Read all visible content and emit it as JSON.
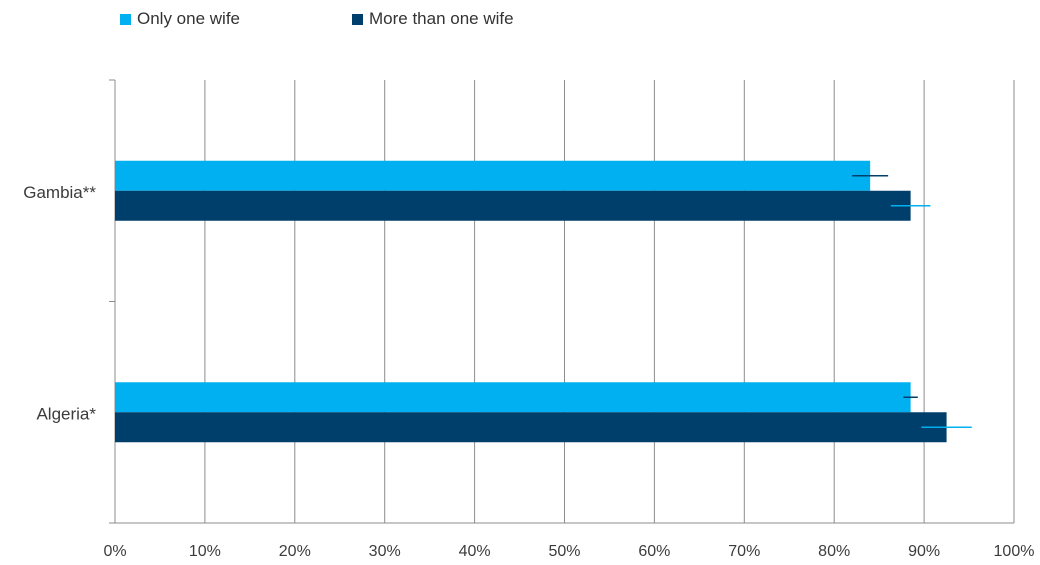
{
  "chart_data": {
    "type": "bar",
    "orientation": "horizontal",
    "categories": [
      "Gambia**",
      "Algeria*"
    ],
    "series": [
      {
        "name": "Only one wife",
        "color": "#00b0f0",
        "values": [
          84,
          88.5
        ],
        "error": [
          2,
          0.8
        ]
      },
      {
        "name": "More than one wife",
        "color": "#003f6b",
        "values": [
          88.5,
          92.5
        ],
        "error": [
          2.2,
          2.8
        ]
      }
    ],
    "xlim": [
      0,
      100
    ],
    "xticks": [
      "0%",
      "10%",
      "20%",
      "30%",
      "40%",
      "50%",
      "60%",
      "70%",
      "80%",
      "90%",
      "100%"
    ],
    "grid": true,
    "legend_position": "top-left"
  }
}
